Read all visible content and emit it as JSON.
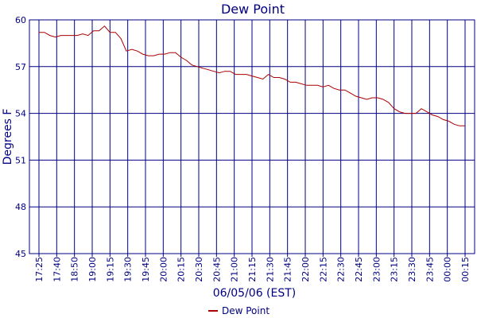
{
  "chart_data": {
    "type": "line",
    "title": "Dew Point",
    "xlabel": "06/05/06 (EST)",
    "ylabel": "Degrees F",
    "ylim": [
      45,
      60
    ],
    "yticks": [
      45,
      48,
      51,
      54,
      57,
      60
    ],
    "grid": true,
    "legend_position": "bottom",
    "x_tick_labels": [
      "17:25",
      "17:40",
      "18:50",
      "19:00",
      "19:15",
      "19:30",
      "19:45",
      "20:00",
      "20:15",
      "20:30",
      "20:45",
      "21:00",
      "21:15",
      "21:30",
      "21:45",
      "22:00",
      "22:15",
      "22:30",
      "22:45",
      "23:00",
      "23:15",
      "23:30",
      "23:45",
      "00:00",
      "00:15"
    ],
    "series": [
      {
        "name": "Dew Point",
        "color": "#aa0000",
        "values": [
          59.2,
          59.2,
          59.0,
          58.9,
          59.0,
          59.0,
          59.0,
          59.0,
          59.1,
          59.0,
          59.3,
          59.3,
          59.6,
          59.2,
          59.2,
          58.8,
          58.0,
          58.1,
          58.0,
          57.8,
          57.7,
          57.7,
          57.8,
          57.8,
          57.9,
          57.9,
          57.6,
          57.4,
          57.1,
          57.0,
          56.9,
          56.8,
          56.7,
          56.6,
          56.7,
          56.7,
          56.5,
          56.5,
          56.5,
          56.4,
          56.3,
          56.2,
          56.5,
          56.3,
          56.3,
          56.2,
          56.0,
          56.0,
          55.9,
          55.8,
          55.8,
          55.8,
          55.7,
          55.8,
          55.6,
          55.5,
          55.5,
          55.3,
          55.1,
          55.0,
          54.9,
          55.0,
          55.0,
          54.9,
          54.7,
          54.3,
          54.1,
          54.0,
          54.0,
          54.0,
          54.3,
          54.1,
          53.9,
          53.8,
          53.6,
          53.5,
          53.3,
          53.2,
          53.2
        ]
      }
    ]
  }
}
